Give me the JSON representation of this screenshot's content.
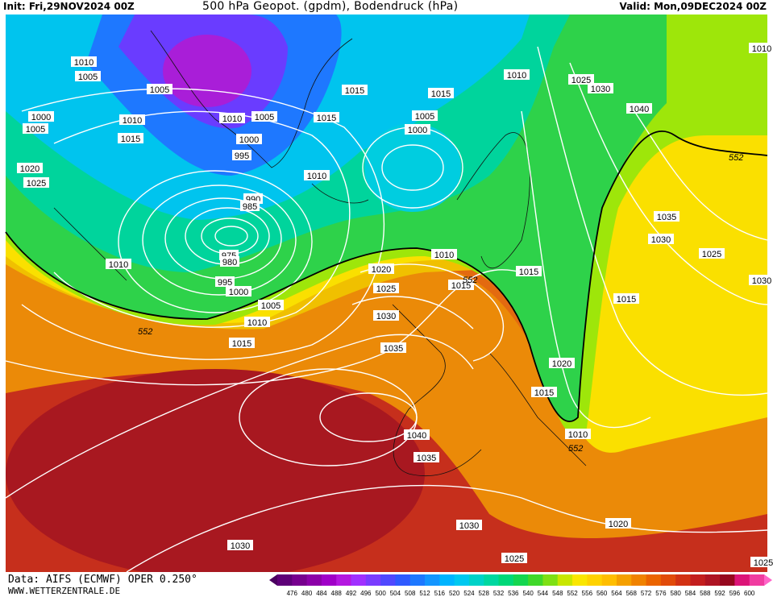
{
  "header": {
    "init": "Init: Fri,29NOV2024 00Z",
    "title": "500 hPa Geopot. (gpdm), Bodendruck (hPa)",
    "valid": "Valid: Mon,09DEC2024 00Z"
  },
  "footer": {
    "source": "Data: AIFS (ECMWF) OPER 0.250°",
    "site": "WWW.WETTERZENTRALE.DE"
  },
  "legend": {
    "ticks": [
      "476",
      "480",
      "484",
      "488",
      "492",
      "496",
      "500",
      "504",
      "508",
      "512",
      "516",
      "520",
      "524",
      "528",
      "532",
      "536",
      "540",
      "544",
      "548",
      "552",
      "556",
      "560",
      "564",
      "568",
      "572",
      "576",
      "580",
      "584",
      "588",
      "592",
      "596",
      "600"
    ],
    "colors": [
      "#4b0060",
      "#5e0078",
      "#77008e",
      "#8c00a8",
      "#a000c8",
      "#b418e0",
      "#a030ff",
      "#7a3cff",
      "#5048ff",
      "#2f5aff",
      "#1e78ff",
      "#1496ff",
      "#00b4ff",
      "#00c8f0",
      "#00d2c8",
      "#00d7a0",
      "#00d878",
      "#14d650",
      "#40d82a",
      "#7ee014",
      "#c8e600",
      "#fae600",
      "#ffd200",
      "#ffbe00",
      "#f5a000",
      "#f08200",
      "#eb6400",
      "#e14b0a",
      "#d23214",
      "#c31e1e",
      "#ae1423",
      "#96081e",
      "#dc1478",
      "#f03ca0",
      "#ff64c8"
    ]
  },
  "contour_labels": [
    "1010",
    "1005",
    "1005",
    "1000",
    "1005",
    "1010",
    "1005",
    "1010",
    "1015",
    "1015",
    "1010",
    "1025",
    "1030",
    "1040",
    "1020",
    "1025",
    "1015",
    "1015",
    "1005",
    "1000",
    "1000",
    "995",
    "990",
    "985",
    "975",
    "980",
    "995",
    "1000",
    "1005",
    "1010",
    "1010",
    "1015",
    "1020",
    "1025",
    "1030",
    "1035",
    "1040",
    "1035",
    "1030",
    "1025",
    "1010",
    "1015",
    "1035",
    "1030",
    "1025",
    "1015",
    "1020",
    "1015",
    "1010",
    "1020",
    "1030",
    "1025",
    "1030",
    "1010",
    "1015",
    "1010"
  ],
  "isohypse_label": "552"
}
